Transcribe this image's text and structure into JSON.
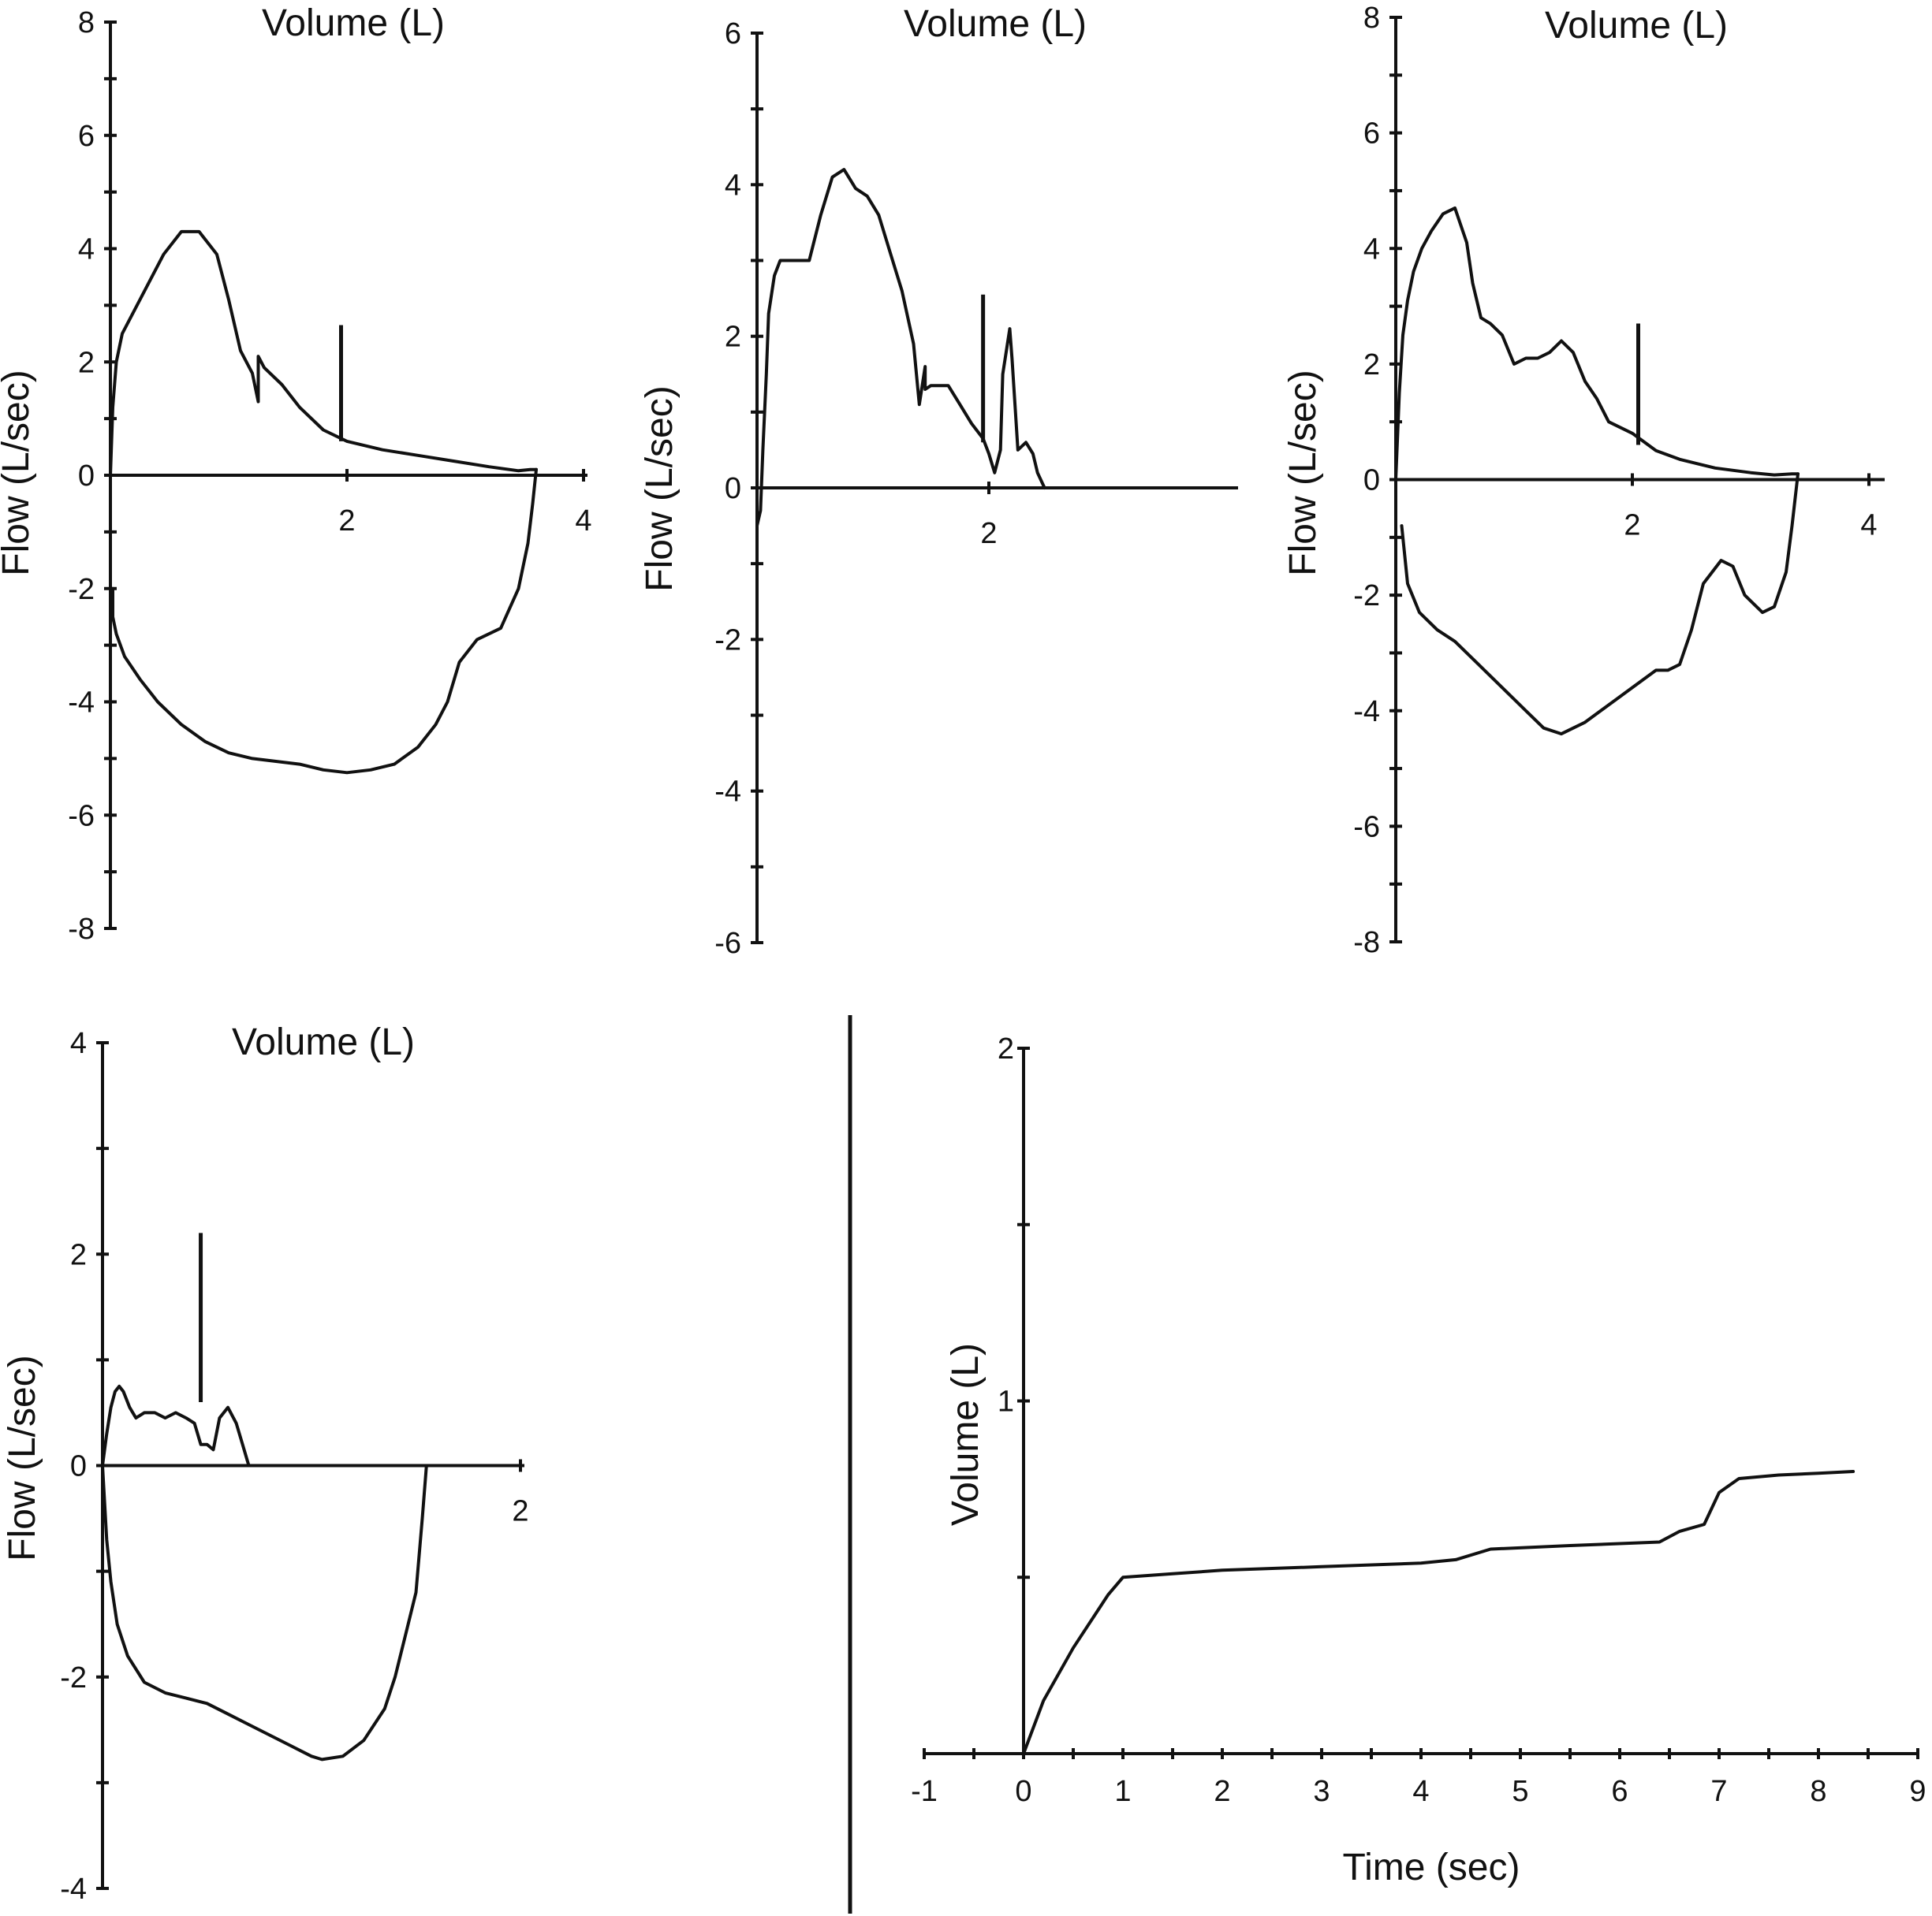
{
  "chart_data": [
    {
      "id": "p1",
      "type": "line",
      "title": "Volume (L)",
      "ylabel": "Flow (L/sec)",
      "xlim": [
        0,
        4
      ],
      "ylim": [
        -8,
        8
      ],
      "x_ticks": [
        2,
        4
      ],
      "y_ticks": [
        8,
        6,
        4,
        2,
        0,
        -2,
        -4,
        -6,
        -8
      ],
      "marker_line": {
        "x": 1.95,
        "y_top": 2.65
      },
      "series": [
        {
          "x": [
            0,
            0.02,
            0.05,
            0.1,
            0.2,
            0.3,
            0.45,
            0.6,
            0.75,
            0.9,
            1.0,
            1.1,
            1.2,
            1.25,
            1.25,
            1.3,
            1.45,
            1.6,
            1.8,
            2.0,
            2.3,
            2.6,
            2.9,
            3.2,
            3.45,
            3.55,
            3.6
          ],
          "y": [
            0,
            1.2,
            2.0,
            2.5,
            2.9,
            3.3,
            3.9,
            4.3,
            4.3,
            3.9,
            3.1,
            2.2,
            1.8,
            1.3,
            2.1,
            1.9,
            1.6,
            1.2,
            0.8,
            0.6,
            0.45,
            0.35,
            0.25,
            0.15,
            0.08,
            0.1,
            0.1
          ]
        },
        {
          "x": [
            3.6,
            3.57,
            3.53,
            3.45,
            3.3,
            3.1,
            2.95,
            2.85,
            2.75,
            2.6,
            2.4,
            2.2,
            2.0,
            1.8,
            1.6,
            1.4,
            1.2,
            1.0,
            0.8,
            0.6,
            0.4,
            0.25,
            0.12,
            0.05,
            0.02,
            0.02
          ],
          "y": [
            0.1,
            -0.5,
            -1.2,
            -2.0,
            -2.7,
            -2.9,
            -3.3,
            -4.0,
            -4.4,
            -4.8,
            -5.1,
            -5.2,
            -5.25,
            -5.2,
            -5.1,
            -5.05,
            -5.0,
            -4.9,
            -4.7,
            -4.4,
            -4.0,
            -3.6,
            -3.2,
            -2.8,
            -2.5,
            -2.0
          ]
        }
      ]
    },
    {
      "id": "p2",
      "type": "line",
      "title": "Volume (L)",
      "ylabel": "Flow (L/sec)",
      "xlim": [
        0,
        4
      ],
      "ylim": [
        -6,
        6
      ],
      "x_ticks": [
        2
      ],
      "y_ticks": [
        6,
        4,
        2,
        0,
        -2,
        -4,
        -6
      ],
      "marker_line": {
        "x": 1.95,
        "y_top": 2.55
      },
      "series": [
        {
          "x": [
            0,
            0.03,
            0.05,
            0.08,
            0.1,
            0.15,
            0.2,
            0.3,
            0.45,
            0.55,
            0.65,
            0.75,
            0.85,
            0.95,
            1.05,
            1.15,
            1.25,
            1.35,
            1.4,
            1.45,
            1.45,
            1.5,
            1.65,
            1.75,
            1.85,
            1.95,
            2.0,
            2.05,
            2.1,
            2.12,
            2.18,
            2.2,
            2.25,
            2.32,
            2.38,
            2.42,
            2.48
          ],
          "y": [
            -0.5,
            -0.3,
            0.5,
            1.5,
            2.3,
            2.8,
            3.0,
            3.0,
            3.0,
            3.6,
            4.1,
            4.2,
            3.95,
            3.85,
            3.6,
            3.1,
            2.6,
            1.9,
            1.1,
            1.6,
            1.3,
            1.35,
            1.35,
            1.1,
            0.85,
            0.65,
            0.45,
            0.2,
            0.5,
            1.5,
            2.1,
            1.7,
            0.5,
            0.6,
            0.45,
            0.2,
            0.0
          ]
        }
      ]
    },
    {
      "id": "p3",
      "type": "line",
      "title": "Volume (L)",
      "ylabel": "Flow (L/sec)",
      "xlim": [
        0,
        4
      ],
      "ylim": [
        -8,
        8
      ],
      "x_ticks": [
        2,
        4
      ],
      "y_ticks": [
        8,
        6,
        4,
        2,
        0,
        -2,
        -4,
        -6,
        -8
      ],
      "marker_line": {
        "x": 2.05,
        "y_top": 2.7
      },
      "series": [
        {
          "x": [
            0,
            0.03,
            0.06,
            0.1,
            0.15,
            0.22,
            0.3,
            0.4,
            0.5,
            0.6,
            0.65,
            0.72,
            0.8,
            0.9,
            1.0,
            1.1,
            1.2,
            1.3,
            1.4,
            1.5,
            1.6,
            1.7,
            1.8,
            2.0,
            2.2,
            2.4,
            2.7,
            3.0,
            3.2,
            3.35,
            3.4
          ],
          "y": [
            0,
            1.5,
            2.5,
            3.1,
            3.6,
            4.0,
            4.3,
            4.6,
            4.7,
            4.1,
            3.4,
            2.8,
            2.7,
            2.5,
            2.0,
            2.1,
            2.1,
            2.2,
            2.4,
            2.2,
            1.7,
            1.4,
            1.0,
            0.8,
            0.5,
            0.35,
            0.2,
            0.12,
            0.08,
            0.1,
            0.1
          ]
        },
        {
          "x": [
            3.4,
            3.35,
            3.3,
            3.2,
            3.1,
            2.95,
            2.85,
            2.75,
            2.6,
            2.5,
            2.4,
            2.3,
            2.2,
            2.0,
            1.8,
            1.6,
            1.4,
            1.25,
            1.1,
            0.9,
            0.7,
            0.5,
            0.35,
            0.2,
            0.1,
            0.05
          ],
          "y": [
            0.1,
            -0.8,
            -1.6,
            -2.2,
            -2.3,
            -2.0,
            -1.5,
            -1.4,
            -1.8,
            -2.6,
            -3.2,
            -3.3,
            -3.3,
            -3.6,
            -3.9,
            -4.2,
            -4.4,
            -4.3,
            -4.0,
            -3.6,
            -3.2,
            -2.8,
            -2.6,
            -2.3,
            -1.8,
            -0.8
          ]
        }
      ]
    },
    {
      "id": "p4",
      "type": "line",
      "title": "Volume (L)",
      "ylabel": "Flow (L/sec)",
      "xlim": [
        0,
        2
      ],
      "ylim": [
        -4,
        4
      ],
      "x_ticks": [
        2
      ],
      "y_ticks": [
        4,
        2,
        0,
        -2,
        -4
      ],
      "marker_line": {
        "x": 0.47,
        "y_top": 2.2
      },
      "series": [
        {
          "x": [
            0,
            0.02,
            0.04,
            0.06,
            0.08,
            0.1,
            0.13,
            0.16,
            0.2,
            0.25,
            0.3,
            0.35,
            0.4,
            0.44,
            0.47,
            0.5,
            0.53,
            0.56,
            0.6,
            0.64,
            0.67,
            0.7
          ],
          "y": [
            0,
            0.3,
            0.55,
            0.7,
            0.75,
            0.7,
            0.55,
            0.45,
            0.5,
            0.5,
            0.45,
            0.5,
            0.45,
            0.4,
            0.2,
            0.2,
            0.15,
            0.45,
            0.55,
            0.4,
            0.2,
            0.0
          ]
        },
        {
          "x": [
            1.55,
            1.53,
            1.5,
            1.45,
            1.4,
            1.35,
            1.25,
            1.15,
            1.05,
            1.0,
            0.9,
            0.8,
            0.7,
            0.6,
            0.5,
            0.4,
            0.3,
            0.2,
            0.12,
            0.07,
            0.04,
            0.02,
            0.0
          ],
          "y": [
            0.0,
            -0.5,
            -1.2,
            -1.6,
            -2.0,
            -2.3,
            -2.6,
            -2.75,
            -2.78,
            -2.75,
            -2.65,
            -2.55,
            -2.45,
            -2.35,
            -2.25,
            -2.2,
            -2.15,
            -2.05,
            -1.8,
            -1.5,
            -1.1,
            -0.7,
            0.0
          ]
        }
      ]
    },
    {
      "id": "p5",
      "type": "line",
      "ylabel": "Volume (L)",
      "xlabel": "Time (sec)",
      "xlim": [
        -1,
        9
      ],
      "ylim": [
        0,
        2
      ],
      "x_ticks": [
        -1,
        0,
        1,
        2,
        3,
        4,
        5,
        6,
        7,
        8,
        9
      ],
      "y_ticks": [
        2,
        1
      ],
      "marker_line": {
        "x": 1.0,
        "y_top": 1.5
      },
      "series": [
        {
          "x": [
            -1,
            -0.5,
            -0.1,
            0,
            0.2,
            0.5,
            0.85,
            1.0,
            1.5,
            2.0,
            3.0,
            4.0,
            4.35,
            4.7,
            5.5,
            6.4,
            6.6,
            6.85,
            7.0,
            7.2,
            7.6,
            8.0,
            8.35
          ],
          "y": [
            0,
            0,
            0,
            0,
            0.15,
            0.3,
            0.45,
            0.5,
            0.51,
            0.52,
            0.53,
            0.54,
            0.55,
            0.58,
            0.59,
            0.6,
            0.63,
            0.65,
            0.74,
            0.78,
            0.79,
            0.795,
            0.8
          ]
        }
      ]
    }
  ]
}
